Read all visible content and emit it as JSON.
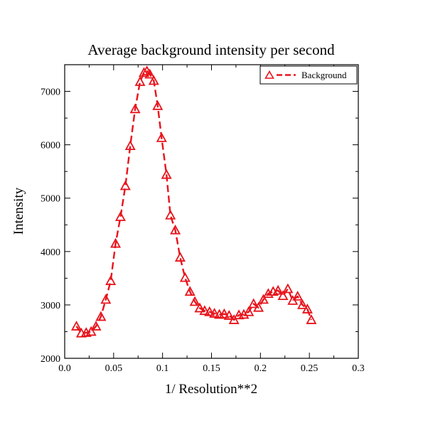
{
  "chart_data": {
    "type": "line",
    "title": "Average background intensity per second",
    "xlabel": "1/ Resolution**2",
    "ylabel": "Intensity",
    "xlim": [
      0.0,
      0.3
    ],
    "ylim": [
      2000,
      7500
    ],
    "x_ticks": [
      0.0,
      0.05,
      0.1,
      0.15,
      0.2,
      0.25,
      0.3
    ],
    "x_tick_labels": [
      "0.0",
      "0.05",
      "0.1",
      "0.15",
      "0.2",
      "0.25",
      "0.3"
    ],
    "y_ticks": [
      2000,
      3000,
      4000,
      5000,
      6000,
      7000
    ],
    "y_tick_labels": [
      "2000",
      "3000",
      "4000",
      "5000",
      "6000",
      "7000"
    ],
    "grid": false,
    "legend_position": "top-right",
    "series": [
      {
        "name": "Background",
        "color": "#e8141c",
        "line_style": "dashed",
        "marker": "open-triangle",
        "x": [
          0.012,
          0.017,
          0.022,
          0.027,
          0.032,
          0.037,
          0.042,
          0.047,
          0.052,
          0.057,
          0.062,
          0.067,
          0.072,
          0.077,
          0.081,
          0.084,
          0.087,
          0.091,
          0.095,
          0.099,
          0.104,
          0.108,
          0.113,
          0.118,
          0.123,
          0.128,
          0.133,
          0.138,
          0.143,
          0.148,
          0.153,
          0.158,
          0.163,
          0.168,
          0.173,
          0.178,
          0.183,
          0.188,
          0.193,
          0.198,
          0.203,
          0.208,
          0.213,
          0.218,
          0.223,
          0.228,
          0.233,
          0.238,
          0.243,
          0.248,
          0.252
        ],
        "y": [
          2600,
          2470,
          2480,
          2500,
          2600,
          2780,
          3100,
          3450,
          4150,
          4650,
          5230,
          5980,
          6670,
          7180,
          7350,
          7380,
          7320,
          7200,
          6730,
          6130,
          5440,
          4680,
          4400,
          3890,
          3510,
          3250,
          3060,
          2940,
          2890,
          2870,
          2840,
          2820,
          2830,
          2800,
          2720,
          2810,
          2820,
          2870,
          3020,
          2950,
          3100,
          3210,
          3250,
          3270,
          3170,
          3300,
          3080,
          3160,
          3000,
          2920,
          2720
        ]
      }
    ]
  }
}
